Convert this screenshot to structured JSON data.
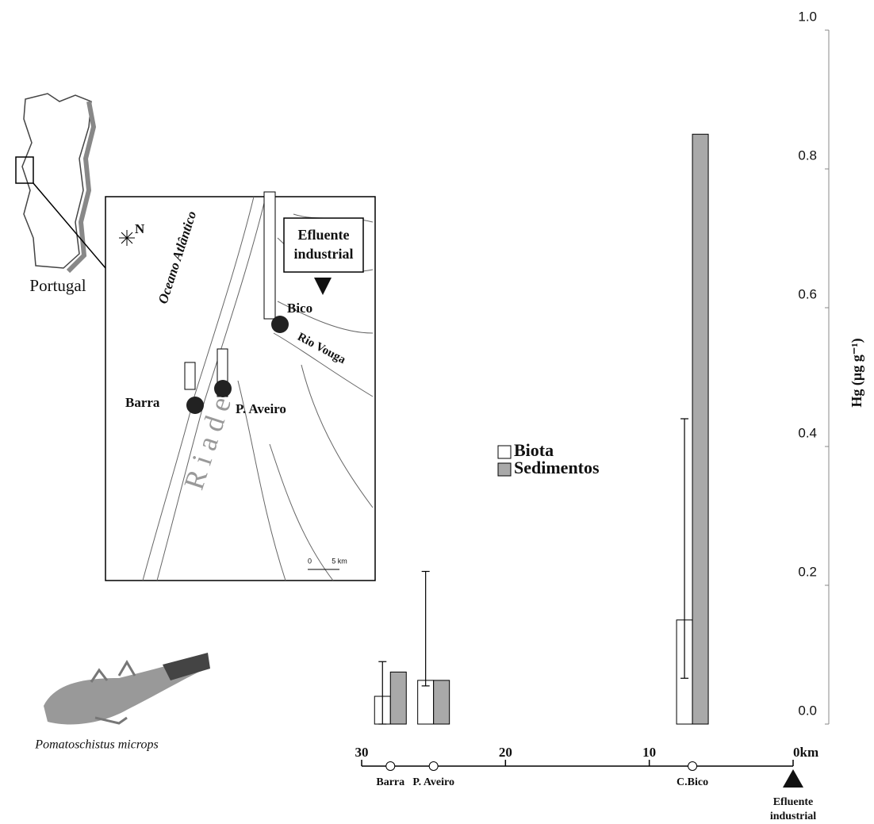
{
  "chart_data": {
    "type": "bar",
    "y_label": "Hg (µg g⁻¹)",
    "categories": [
      "Barra",
      "P. Aveiro",
      "C.Bico"
    ],
    "x": [
      28,
      25,
      7
    ],
    "xlim": [
      30,
      0
    ],
    "xticks": [
      30,
      20,
      10,
      {
        "value": 0,
        "label": "0km"
      }
    ],
    "ylim": [
      0,
      1
    ],
    "yticks": [
      {
        "value": 0,
        "label": "0.0"
      },
      0.2,
      0.4,
      0.6,
      0.8,
      {
        "value": 1,
        "label": "1.0"
      }
    ],
    "series": [
      {
        "name": "Biota",
        "color": "#ffffff",
        "values": [
          0.04,
          0.063,
          0.15
        ],
        "error_low": [
          0.0,
          0.055,
          0.066
        ],
        "error_high": [
          0.09,
          0.22,
          0.44
        ]
      },
      {
        "name": "Sedimentos",
        "color": "#a9a9a9",
        "values": [
          0.075,
          0.063,
          0.85
        ]
      }
    ],
    "source_label": [
      "Efluente",
      "industrial"
    ]
  },
  "map": {
    "country": "Portugal",
    "ocean": "Oceano Atlântico",
    "north": "N",
    "effluent": [
      "Efluente",
      "industrial"
    ],
    "river": "Rio Vouga",
    "lagoon": "R i a  d e",
    "sites": [
      "Bico",
      "Barra",
      "P. Aveiro"
    ],
    "scale": [
      "0",
      "5 km"
    ]
  },
  "species": "Pomatoschistus microps"
}
